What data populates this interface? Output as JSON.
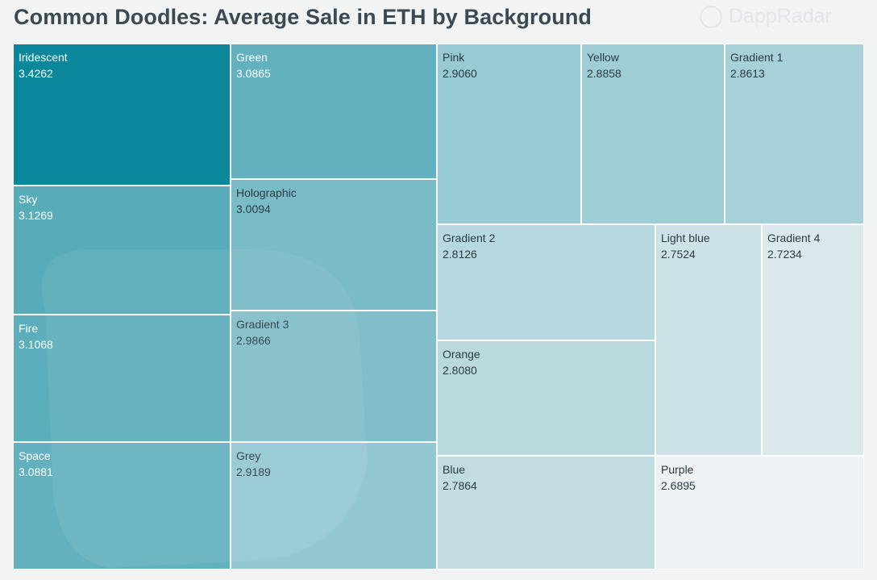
{
  "header": {
    "title": "Common Doodles: Average Sale in ETH by Background",
    "watermark": "DappRadar"
  },
  "chart_data": {
    "type": "treemap",
    "title": "Common Doodles: Average Sale in ETH by Background",
    "items": [
      {
        "label": "Iridescent",
        "value": 3.4262
      },
      {
        "label": "Sky",
        "value": 3.1269
      },
      {
        "label": "Fire",
        "value": 3.1068
      },
      {
        "label": "Space",
        "value": 3.0881
      },
      {
        "label": "Green",
        "value": 3.0865
      },
      {
        "label": "Holographic",
        "value": 3.0094
      },
      {
        "label": "Gradient 3",
        "value": 2.9866
      },
      {
        "label": "Grey",
        "value": 2.9189
      },
      {
        "label": "Pink",
        "value": 2.906
      },
      {
        "label": "Yellow",
        "value": 2.8858
      },
      {
        "label": "Gradient 1",
        "value": 2.8613
      },
      {
        "label": "Gradient 2",
        "value": 2.8126
      },
      {
        "label": "Orange",
        "value": 2.808
      },
      {
        "label": "Blue",
        "value": 2.7864
      },
      {
        "label": "Light blue",
        "value": 2.7524
      },
      {
        "label": "Gradient 4",
        "value": 2.7234
      },
      {
        "label": "Purple",
        "value": 2.6895
      }
    ],
    "value_labels": [
      "3.4262",
      "3.1269",
      "3.1068",
      "3.0881",
      "3.0865",
      "3.0094",
      "2.9866",
      "2.9189",
      "2.9060",
      "2.8858",
      "2.8613",
      "2.8126",
      "2.8080",
      "2.7864",
      "2.7524",
      "2.7234",
      "2.6895"
    ],
    "color_low": "#eef2f4",
    "color_high": "#0a879b"
  }
}
